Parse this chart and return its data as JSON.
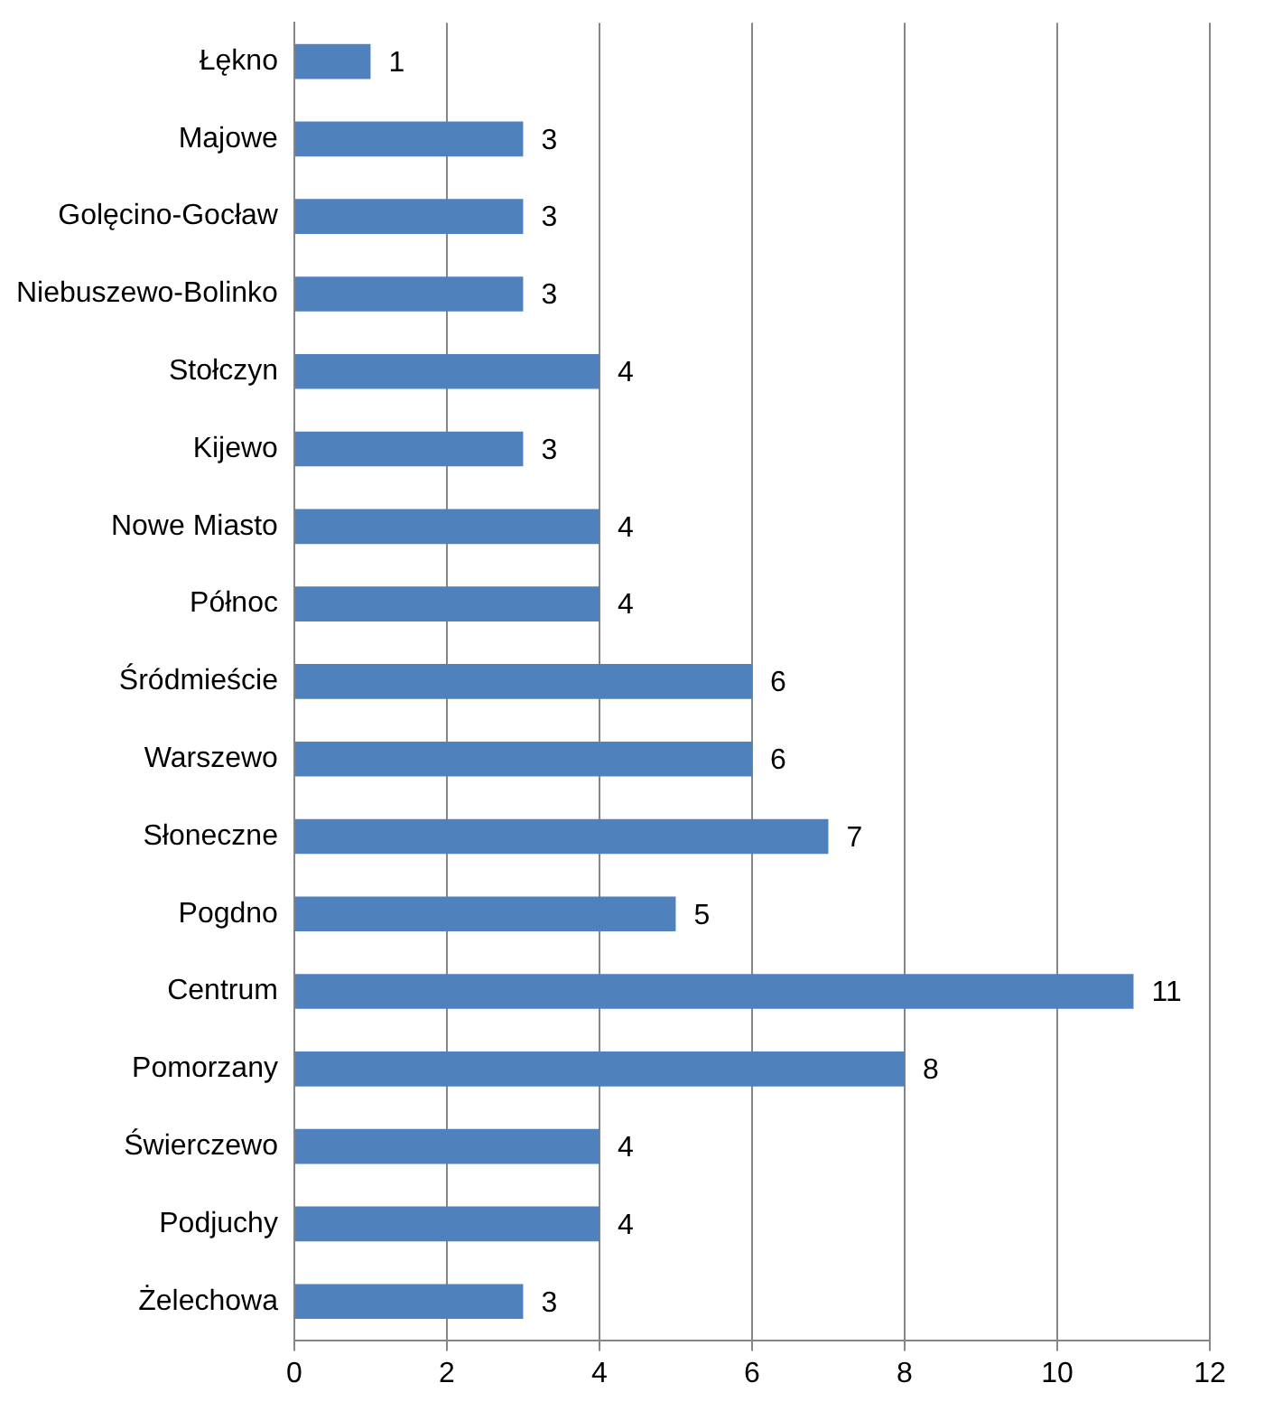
{
  "chart_data": {
    "type": "bar",
    "orientation": "horizontal",
    "categories": [
      "Łękno",
      "Majowe",
      "Golęcino-Gocław",
      "Niebuszewo-Bolinko",
      "Stołczyn",
      "Kijewo",
      "Nowe Miasto",
      "Północ",
      "Śródmieście",
      "Warszewo",
      "Słoneczne",
      "Pogdno",
      "Centrum",
      "Pomorzany",
      "Świerczewo",
      "Podjuchy",
      "Żelechowa"
    ],
    "values": [
      1,
      3,
      3,
      3,
      4,
      3,
      4,
      4,
      6,
      6,
      7,
      5,
      11,
      8,
      4,
      4,
      3
    ],
    "color": "#4f81bd",
    "xlim": [
      0,
      12
    ],
    "xticks": [
      0,
      2,
      4,
      6,
      8,
      10,
      12
    ],
    "grid": "x",
    "data_labels": true,
    "legend": false
  }
}
